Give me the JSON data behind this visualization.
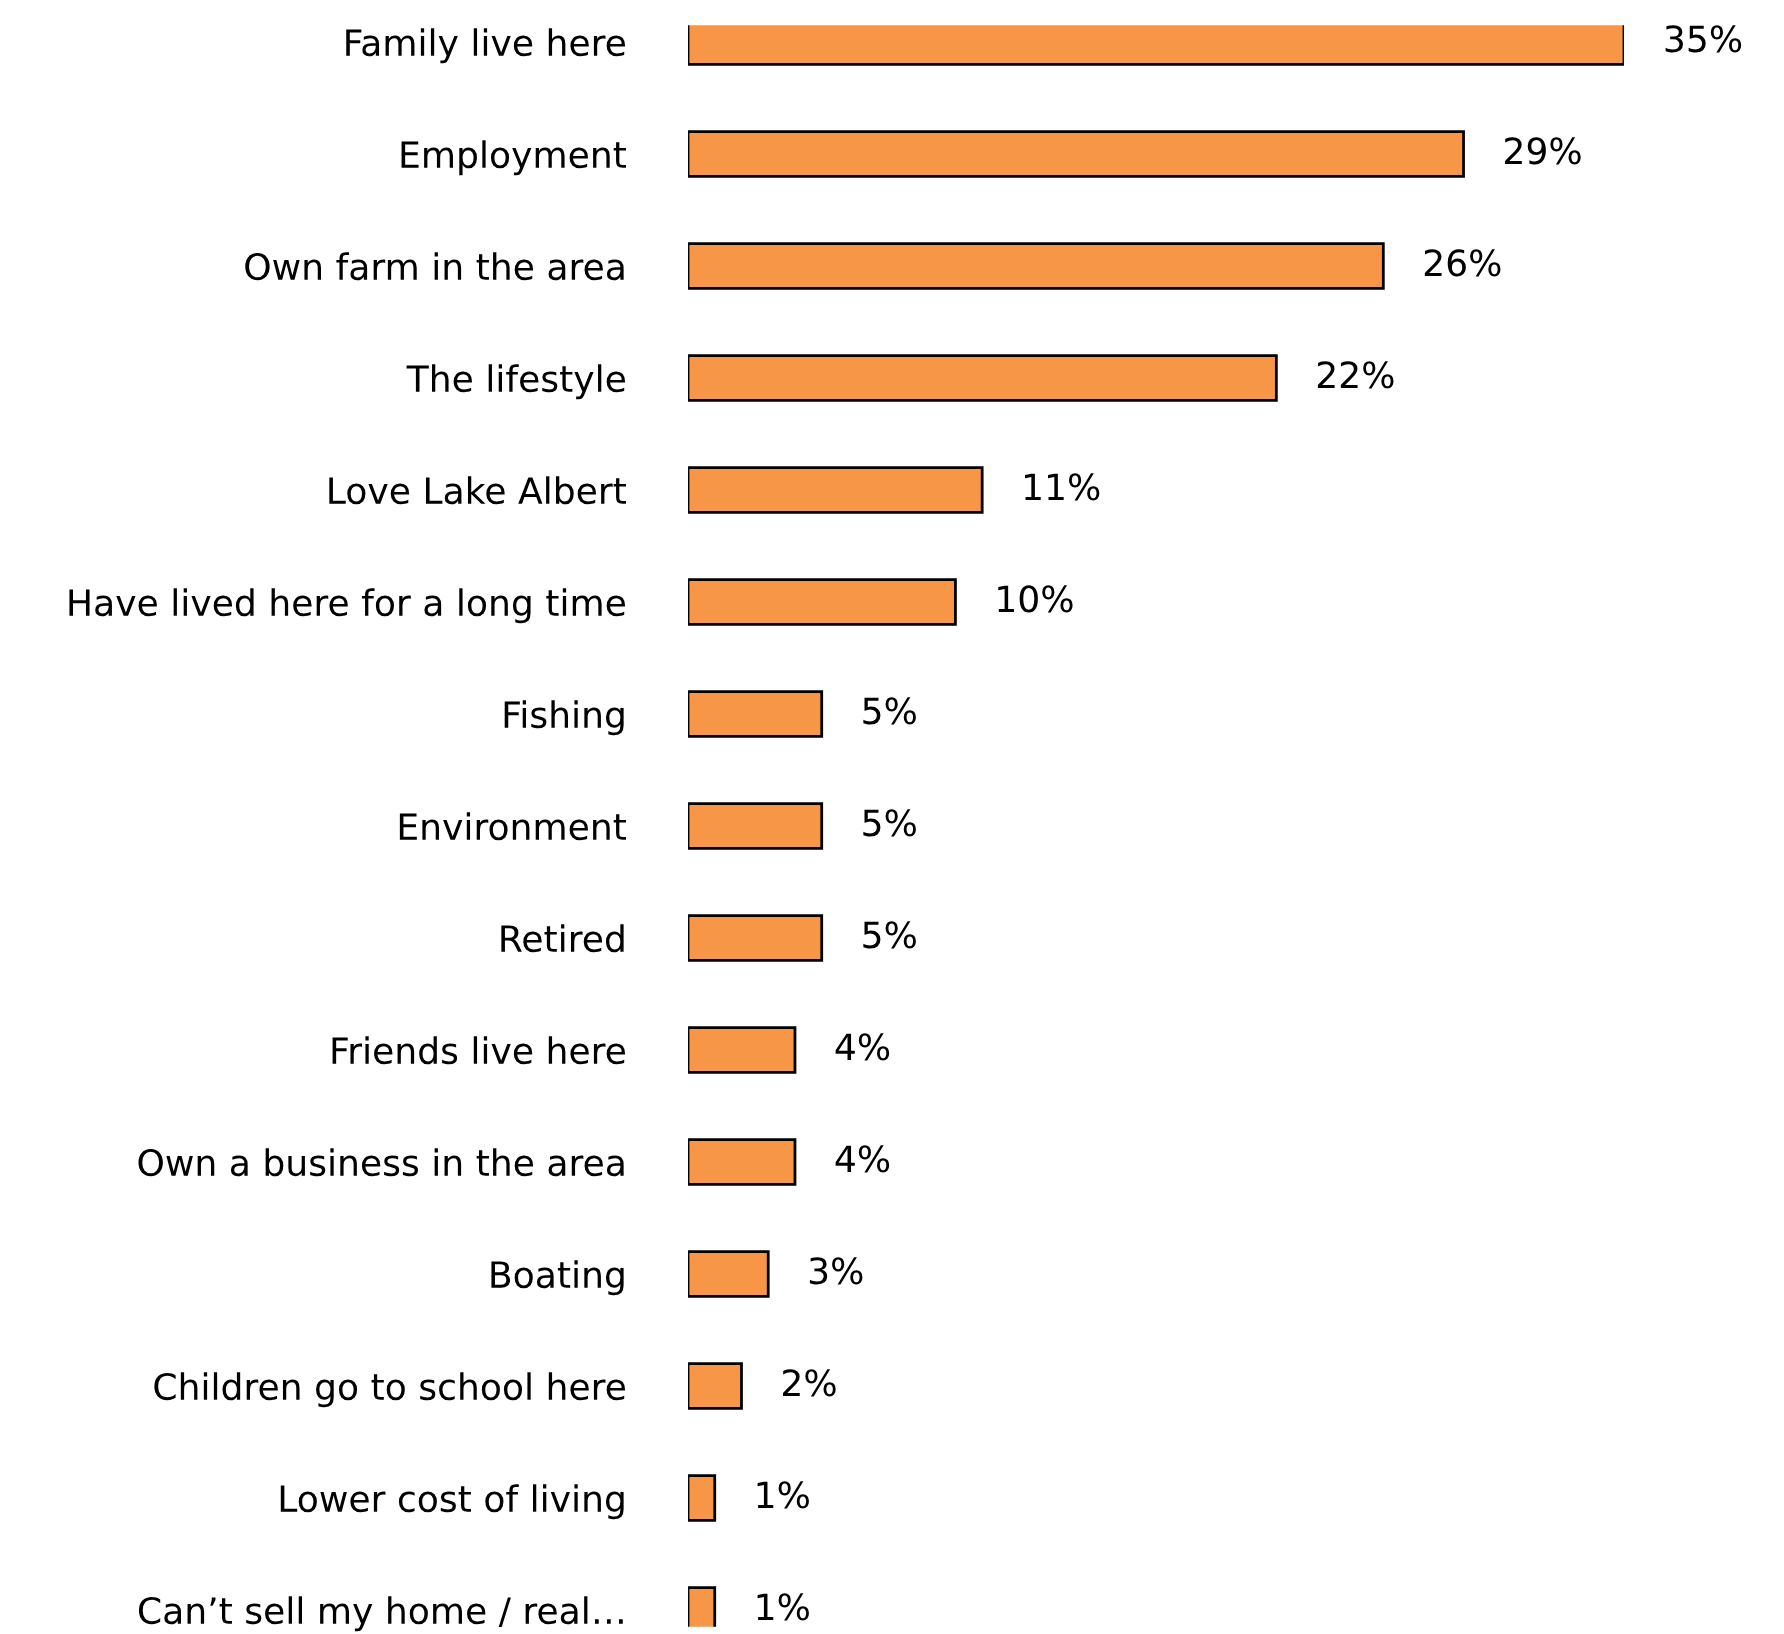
{
  "chart_data": {
    "type": "bar",
    "orientation": "horizontal",
    "categories": [
      "Family live here",
      "Employment",
      "Own farm in the area",
      "The lifestyle",
      "Love Lake Albert",
      "Have lived here for a long time",
      "Fishing",
      "Environment",
      "Retired",
      "Friends live here",
      "Own a business in the area",
      "Boating",
      "Children go to school here",
      "Lower cost of living",
      "Can’t sell my home / real…"
    ],
    "values": [
      35,
      29,
      26,
      22,
      11,
      10,
      5,
      5,
      5,
      4,
      4,
      3,
      2,
      1,
      1
    ],
    "value_labels": [
      "35%",
      "29%",
      "26%",
      "22%",
      "11%",
      "10%",
      "5%",
      "5%",
      "5%",
      "4%",
      "4%",
      "3%",
      "2%",
      "1%",
      "1%"
    ],
    "color": "#f79646",
    "xlim": [
      0,
      35
    ],
    "tick_labels": "y",
    "grid": false,
    "legend": false
  }
}
